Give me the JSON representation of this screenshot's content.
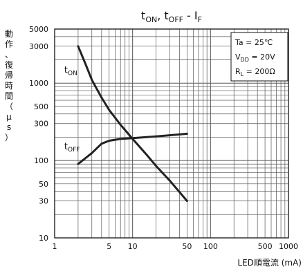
{
  "chart_data": {
    "type": "line",
    "title": {
      "base": "t",
      "sub1": "ON",
      "sep": ", t",
      "sub2": "OFF",
      "tail": " - I",
      "sub3": "F"
    },
    "xlabel": "LED順電流 (mA)",
    "ylabel": "動作、復帰時間（μs）",
    "x_scale": "log",
    "y_scale": "log",
    "xlim": [
      1,
      1000
    ],
    "ylim": [
      10,
      5000
    ],
    "x_ticks": [
      1,
      5,
      10,
      50,
      100,
      500,
      1000
    ],
    "y_ticks": [
      10,
      30,
      50,
      100,
      300,
      500,
      1000,
      3000,
      5000
    ],
    "grid": true,
    "conditions": [
      {
        "label": "Ta = 25℃"
      },
      {
        "label_main": "V",
        "label_sub": "DD",
        "label_tail": " = 20V"
      },
      {
        "label_main": "R",
        "label_sub": "L",
        "label_tail": " = 200Ω"
      }
    ],
    "series": [
      {
        "name": "tON",
        "label_main": "t",
        "label_sub": "ON",
        "x": [
          2,
          2.5,
          3,
          4,
          5,
          7,
          10,
          15,
          20,
          30,
          50
        ],
        "y": [
          3000,
          1750,
          1100,
          650,
          450,
          290,
          190,
          120,
          85,
          55,
          30
        ]
      },
      {
        "name": "tOFF",
        "label_main": "t",
        "label_sub": "OFF",
        "x": [
          2,
          3,
          4,
          5,
          7,
          10,
          20,
          30,
          50
        ],
        "y": [
          90,
          125,
          165,
          180,
          190,
          195,
          205,
          212,
          222
        ]
      }
    ],
    "colors": {
      "line": "#222222",
      "grid": "#555555",
      "frame": "#111111",
      "text": "#111111"
    }
  }
}
